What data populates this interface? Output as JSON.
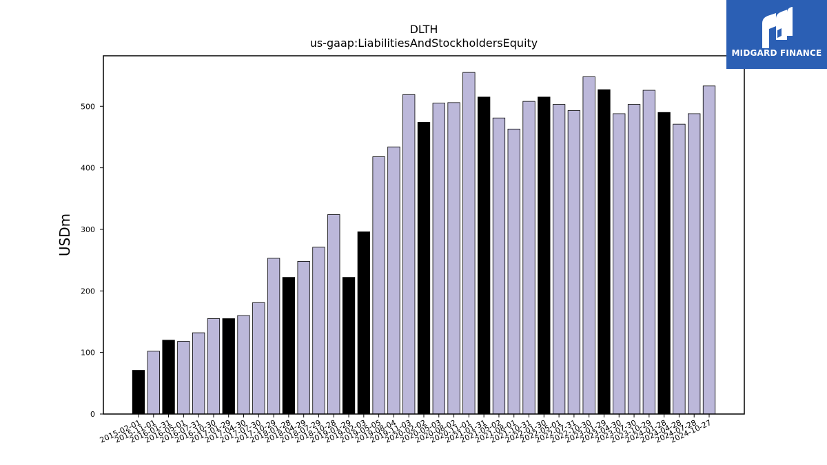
{
  "chart_data": {
    "type": "bar",
    "title": "DLTH",
    "subtitle": "us-gaap:LiabilitiesAndStockholdersEquity",
    "xlabel": "",
    "ylabel": "USDm",
    "ylim": [
      0,
      582
    ],
    "yticks": [
      0,
      100,
      200,
      300,
      400,
      500
    ],
    "grid": false,
    "colors": {
      "annual": "#000000",
      "quarterly": "#bcb8da",
      "edge": "#000000"
    },
    "categories": [
      "2015-02-01",
      "2015-11-01",
      "2016-01-31",
      "2016-05-01",
      "2016-07-31",
      "2016-10-30",
      "2017-01-29",
      "2017-04-30",
      "2017-07-30",
      "2017-10-29",
      "2018-01-28",
      "2018-04-29",
      "2018-07-29",
      "2018-10-28",
      "2019-01-29",
      "2019-02-03",
      "2019-05-05",
      "2019-08-04",
      "2019-11-03",
      "2020-02-02",
      "2020-05-03",
      "2020-08-02",
      "2020-11-01",
      "2021-01-31",
      "2021-05-02",
      "2021-08-01",
      "2021-10-31",
      "2022-01-30",
      "2022-05-01",
      "2022-07-31",
      "2022-10-30",
      "2023-01-29",
      "2023-04-30",
      "2023-07-30",
      "2023-10-29",
      "2024-01-28",
      "2024-04-28",
      "2024-07-28",
      "2024-10-27"
    ],
    "values": [
      71,
      102,
      120,
      118,
      132,
      155,
      155,
      160,
      181,
      253,
      222,
      248,
      271,
      324,
      222,
      296,
      418,
      434,
      519,
      474,
      505,
      506,
      555,
      515,
      481,
      463,
      508,
      515,
      503,
      493,
      548,
      527,
      488,
      503,
      526,
      490,
      471,
      488,
      533
    ],
    "annual": [
      true,
      false,
      true,
      false,
      false,
      false,
      true,
      false,
      false,
      false,
      true,
      false,
      false,
      false,
      true,
      true,
      false,
      false,
      false,
      true,
      false,
      false,
      false,
      true,
      false,
      false,
      false,
      true,
      false,
      false,
      false,
      true,
      false,
      false,
      false,
      true,
      false,
      false,
      false
    ]
  },
  "logo": {
    "text": "MIDGARD FINANCE",
    "icon": "midgard-logo-icon"
  }
}
